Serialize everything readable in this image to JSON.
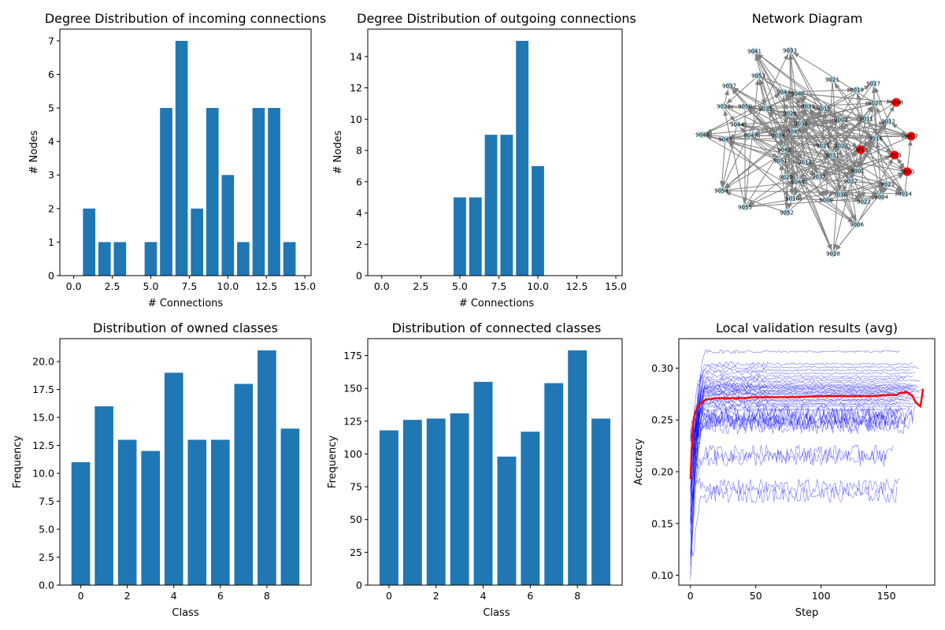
{
  "figure": {
    "background": "#ffffff",
    "bar_color": "#1f77b4",
    "node_color": "#add8e6",
    "highlight_node_color": "#ff0000",
    "edge_color": "#808080",
    "client_line_color": "#0000ff",
    "avg_line_color": "#ff0000"
  },
  "chart_data": [
    {
      "type": "bar",
      "title": "Degree Distribution of incoming connections",
      "xlabel": "# Connections",
      "ylabel": "# Nodes",
      "x": [
        1,
        2,
        3,
        5,
        6,
        7,
        8,
        9,
        10,
        11,
        12,
        13,
        14
      ],
      "values": [
        2,
        1,
        1,
        1,
        5,
        7,
        2,
        5,
        3,
        1,
        5,
        5,
        1
      ],
      "xlim": [
        -0.9,
        15.4
      ],
      "ylim": [
        0,
        7.35
      ],
      "xticks": [
        0.0,
        2.5,
        5.0,
        7.5,
        10.0,
        12.5,
        15.0
      ],
      "xtick_labels": [
        "0.0",
        "2.5",
        "5.0",
        "7.5",
        "10.0",
        "12.5",
        "15.0"
      ],
      "yticks": [
        0,
        1,
        2,
        3,
        4,
        5,
        6,
        7
      ],
      "ytick_labels": [
        "0",
        "1",
        "2",
        "3",
        "4",
        "5",
        "6",
        "7"
      ],
      "grid": false
    },
    {
      "type": "bar",
      "title": "Degree Distribution of outgoing connections",
      "xlabel": "# Connections",
      "ylabel": "# Nodes",
      "x": [
        5,
        6,
        7,
        8,
        9,
        10
      ],
      "values": [
        5,
        5,
        9,
        9,
        15,
        7
      ],
      "xlim": [
        -0.9,
        15.4
      ],
      "ylim": [
        0,
        15.75
      ],
      "xticks": [
        0.0,
        2.5,
        5.0,
        7.5,
        10.0,
        12.5,
        15.0
      ],
      "xtick_labels": [
        "0.0",
        "2.5",
        "5.0",
        "7.5",
        "10.0",
        "12.5",
        "15.0"
      ],
      "yticks": [
        0,
        2,
        4,
        6,
        8,
        10,
        12,
        14
      ],
      "ytick_labels": [
        "0",
        "2",
        "4",
        "6",
        "8",
        "10",
        "12",
        "14"
      ],
      "grid": false
    },
    {
      "type": "network",
      "title": "Network Diagram",
      "nodes": [
        "9041",
        "9033",
        "9053",
        "9021",
        "9017",
        "9037",
        "9043",
        "9040",
        "9019",
        "9008",
        "9038",
        "9050",
        "9035",
        "9039",
        "9015",
        "9020",
        "9026",
        "9002",
        "9011",
        "9012",
        "9036",
        "9044",
        "9048",
        "9034",
        "9047",
        "9016",
        "9007",
        "9046",
        "9045",
        "9025",
        "9024",
        "9013",
        "9042",
        "9031",
        "9003",
        "9051",
        "9018",
        "9032",
        "9001",
        "9029",
        "9049",
        "9027",
        "9023",
        "9000",
        "9054",
        "9010",
        "9030",
        "9009",
        "9022",
        "9004",
        "9014",
        "9055",
        "9052",
        "9006",
        "9028"
      ],
      "highlighted_nodes": [
        "9008",
        "9013",
        "9003",
        "9007",
        "9000"
      ]
    },
    {
      "type": "bar",
      "title": "Distribution of owned classes",
      "xlabel": "Class",
      "ylabel": "Frequency",
      "x": [
        0,
        1,
        2,
        3,
        4,
        5,
        6,
        7,
        8,
        9
      ],
      "values": [
        11,
        16,
        13,
        12,
        19,
        13,
        13,
        18,
        21,
        14
      ],
      "xlim": [
        -0.9,
        9.9
      ],
      "ylim": [
        0,
        22.05
      ],
      "xticks": [
        0,
        2,
        4,
        6,
        8
      ],
      "xtick_labels": [
        "0",
        "2",
        "4",
        "6",
        "8"
      ],
      "yticks": [
        0,
        2.5,
        5,
        7.5,
        10,
        12.5,
        15,
        17.5,
        20
      ],
      "ytick_labels": [
        "0.0",
        "2.5",
        "5.0",
        "7.5",
        "10.0",
        "12.5",
        "15.0",
        "17.5",
        "20.0"
      ],
      "grid": false
    },
    {
      "type": "bar",
      "title": "Distribution of connected classes",
      "xlabel": "Class",
      "ylabel": "Frequency",
      "x": [
        0,
        1,
        2,
        3,
        4,
        5,
        6,
        7,
        8,
        9
      ],
      "values": [
        118,
        126,
        127,
        131,
        155,
        98,
        117,
        154,
        179,
        127
      ],
      "xlim": [
        -0.9,
        9.9
      ],
      "ylim": [
        0,
        187.95
      ],
      "xticks": [
        0,
        2,
        4,
        6,
        8
      ],
      "xtick_labels": [
        "0",
        "2",
        "4",
        "6",
        "8"
      ],
      "yticks": [
        0,
        25,
        50,
        75,
        100,
        125,
        150,
        175
      ],
      "ytick_labels": [
        "0",
        "25",
        "50",
        "75",
        "100",
        "125",
        "150",
        "175"
      ],
      "grid": false
    },
    {
      "type": "line",
      "title": "Local validation results (avg)",
      "xlabel": "Step",
      "ylabel": "Accuracy",
      "xlim": [
        -8.9,
        187
      ],
      "ylim": [
        0.0905,
        0.3285
      ],
      "xticks": [
        0,
        50,
        100,
        150
      ],
      "xtick_labels": [
        "0",
        "50",
        "100",
        "150"
      ],
      "yticks": [
        0.1,
        0.15,
        0.2,
        0.25,
        0.3
      ],
      "ytick_labels": [
        "0.10",
        "0.15",
        "0.20",
        "0.25",
        "0.30"
      ],
      "grid": false,
      "client_final_accuracies": [
        0.316,
        0.304,
        0.301,
        0.298,
        0.295,
        0.292,
        0.29,
        0.288,
        0.286,
        0.284,
        0.283,
        0.282,
        0.281,
        0.28,
        0.279,
        0.278,
        0.277,
        0.276,
        0.275,
        0.274,
        0.272,
        0.27,
        0.269,
        0.268,
        0.266,
        0.265,
        0.263,
        0.26,
        0.258,
        0.256,
        0.253,
        0.25,
        0.248,
        0.246,
        0.244,
        0.218,
        0.213,
        0.185,
        0.178
      ],
      "client_last_steps": [
        160,
        170,
        175,
        168,
        172,
        170,
        165,
        176,
        160,
        170,
        173,
        175,
        168,
        172,
        178,
        170,
        175,
        165,
        160,
        172,
        175,
        170,
        168,
        162,
        175,
        158,
        170,
        165,
        160,
        172,
        158,
        170,
        162,
        168,
        165,
        155,
        150,
        160,
        158
      ],
      "average_series": {
        "x": [
          0,
          1,
          2,
          3,
          5,
          8,
          10,
          12,
          15,
          20,
          30,
          40,
          50,
          60,
          80,
          100,
          120,
          140,
          150,
          158,
          160,
          162,
          165,
          168,
          170,
          172,
          174,
          176,
          177,
          178
        ],
        "y": [
          0.193,
          0.222,
          0.245,
          0.254,
          0.262,
          0.266,
          0.268,
          0.27,
          0.27,
          0.271,
          0.271,
          0.271,
          0.272,
          0.272,
          0.272,
          0.273,
          0.273,
          0.273,
          0.274,
          0.274,
          0.276,
          0.276,
          0.277,
          0.275,
          0.273,
          0.268,
          0.265,
          0.263,
          0.271,
          0.28
        ]
      }
    }
  ]
}
